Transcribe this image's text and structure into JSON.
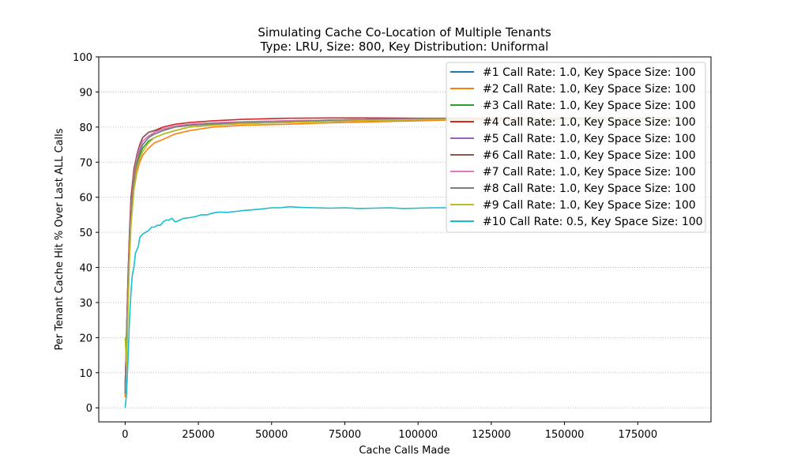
{
  "chart_data": {
    "type": "line",
    "title": "Simulating Cache Co-Location of Multiple Tenants",
    "subtitle": "Type: LRU, Size: 800, Key Distribution: Uniformal",
    "xlabel": "Cache Calls Made",
    "ylabel": "Per Tenant Cache Hit % Over Last ALL Calls",
    "xlim": [
      -9000,
      200000
    ],
    "ylim": [
      -4,
      100
    ],
    "xticks": [
      0,
      25000,
      50000,
      75000,
      100000,
      125000,
      150000,
      175000
    ],
    "yticks": [
      0,
      10,
      20,
      30,
      40,
      50,
      60,
      70,
      80,
      90,
      100
    ],
    "grid": "horizontal-dotted",
    "legend": "top-right",
    "series": [
      {
        "name": "#1 Call Rate: 1.0, Key Space Size: 100",
        "color": "#1f77b4",
        "x": [
          0,
          500,
          1000,
          1500,
          2000,
          3000,
          4000,
          5000,
          6000,
          8000,
          10000,
          13000,
          17000,
          22000,
          30000,
          40000,
          55000,
          70000,
          85000,
          100000,
          110000,
          190000
        ],
        "y": [
          5,
          20,
          35,
          47,
          57,
          65,
          70,
          73,
          75,
          77,
          78,
          79,
          80,
          80.5,
          81,
          81.3,
          81.6,
          82,
          82.2,
          82.3,
          82.4,
          82.6
        ]
      },
      {
        "name": "#2 Call Rate: 1.0, Key Space Size: 100",
        "color": "#ff7f0e",
        "x": [
          0,
          500,
          1000,
          1500,
          2000,
          3000,
          4000,
          5000,
          6000,
          8000,
          10000,
          13000,
          17000,
          22000,
          30000,
          40000,
          55000,
          70000,
          85000,
          100000,
          110000,
          190000
        ],
        "y": [
          3,
          15,
          30,
          43,
          52,
          62,
          67,
          70,
          72,
          74,
          75.5,
          76.5,
          78,
          79,
          80,
          80.5,
          80.8,
          81.2,
          81.5,
          81.8,
          82,
          82.4
        ]
      },
      {
        "name": "#3 Call Rate: 1.0, Key Space Size: 100",
        "color": "#2ca02c",
        "x": [
          0,
          500,
          1000,
          1500,
          2000,
          3000,
          4000,
          5000,
          6000,
          8000,
          10000,
          13000,
          17000,
          22000,
          30000,
          40000,
          55000,
          70000,
          85000,
          100000,
          110000,
          190000
        ],
        "y": [
          4,
          18,
          33,
          45,
          55,
          64,
          69,
          72,
          74,
          76,
          77,
          78,
          79,
          80,
          80.6,
          81,
          81.3,
          81.6,
          81.9,
          82.1,
          82.3,
          82.5
        ]
      },
      {
        "name": "#4 Call Rate: 1.0, Key Space Size: 100",
        "color": "#d62728",
        "x": [
          0,
          500,
          1000,
          1500,
          2000,
          3000,
          4000,
          5000,
          6000,
          8000,
          10000,
          13000,
          17000,
          22000,
          30000,
          40000,
          55000,
          70000,
          85000,
          100000,
          110000,
          190000
        ],
        "y": [
          6,
          22,
          38,
          50,
          60,
          68,
          72,
          75,
          77,
          78.5,
          79,
          80,
          80.8,
          81.3,
          81.8,
          82.2,
          82.5,
          82.6,
          82.6,
          82.5,
          82.5,
          82.6
        ]
      },
      {
        "name": "#5 Call Rate: 1.0, Key Space Size: 100",
        "color": "#9467bd",
        "x": [
          0,
          500,
          1000,
          1500,
          2000,
          3000,
          4000,
          5000,
          6000,
          8000,
          10000,
          13000,
          17000,
          22000,
          30000,
          40000,
          55000,
          70000,
          85000,
          100000,
          110000,
          190000
        ],
        "y": [
          5,
          19,
          34,
          46,
          56,
          65,
          70,
          73,
          75,
          77,
          78.5,
          79.5,
          80.2,
          80.8,
          81.2,
          81.5,
          81.8,
          82,
          82.2,
          82.3,
          82.4,
          82.6
        ]
      },
      {
        "name": "#6 Call Rate: 1.0, Key Space Size: 100",
        "color": "#8c564b",
        "x": [
          0,
          500,
          1000,
          1500,
          2000,
          3000,
          4000,
          5000,
          6000,
          8000,
          10000,
          13000,
          17000,
          22000,
          30000,
          40000,
          55000,
          70000,
          85000,
          100000,
          110000,
          190000
        ],
        "y": [
          6,
          21,
          37,
          49,
          59,
          67,
          72,
          75,
          77,
          78.5,
          79,
          79.5,
          80,
          80.5,
          81,
          81.4,
          81.7,
          82,
          82.2,
          82.3,
          82.4,
          82.6
        ]
      },
      {
        "name": "#7 Call Rate: 1.0, Key Space Size: 100",
        "color": "#e377c2",
        "x": [
          0,
          500,
          1000,
          1500,
          2000,
          3000,
          4000,
          5000,
          6000,
          8000,
          10000,
          13000,
          17000,
          22000,
          30000,
          40000,
          55000,
          70000,
          85000,
          100000,
          110000,
          190000
        ],
        "y": [
          5,
          20,
          35,
          47,
          57,
          66,
          71,
          74,
          76,
          77.5,
          78.5,
          79.5,
          80.3,
          80.8,
          81.2,
          81.5,
          81.8,
          82,
          82.2,
          82.3,
          82.4,
          82.6
        ]
      },
      {
        "name": "#8 Call Rate: 1.0, Key Space Size: 100",
        "color": "#7f7f7f",
        "x": [
          0,
          500,
          1000,
          1500,
          2000,
          3000,
          4000,
          5000,
          6000,
          8000,
          10000,
          13000,
          17000,
          22000,
          30000,
          40000,
          55000,
          70000,
          85000,
          100000,
          110000,
          190000
        ],
        "y": [
          4,
          19,
          34,
          46,
          56,
          65,
          70,
          73,
          75,
          77,
          78,
          79,
          80,
          80.6,
          81,
          81.3,
          81.6,
          81.9,
          82.1,
          82.2,
          82.3,
          82.5
        ]
      },
      {
        "name": "#9 Call Rate: 1.0, Key Space Size: 100",
        "color": "#bcbd22",
        "x": [
          0,
          500,
          1000,
          1500,
          2000,
          3000,
          4000,
          5000,
          6000,
          8000,
          10000,
          13000,
          17000,
          22000,
          30000,
          40000,
          55000,
          70000,
          85000,
          100000,
          110000,
          190000
        ],
        "y": [
          20,
          12,
          28,
          42,
          52,
          62,
          68,
          71,
          73,
          75.5,
          77,
          78,
          79,
          80,
          80.5,
          81,
          81.3,
          81.6,
          81.9,
          82.1,
          82.2,
          82.4
        ]
      },
      {
        "name": "#10 Call Rate: 0.5, Key Space Size: 100",
        "color": "#17becf",
        "x": [
          0,
          500,
          1000,
          1500,
          2000,
          2500,
          3000,
          3500,
          4000,
          4500,
          5000,
          6000,
          7000,
          8000,
          9000,
          10000,
          11000,
          12000,
          13000,
          14000,
          15000,
          16000,
          17000,
          18000,
          20000,
          22000,
          24000,
          26000,
          28000,
          30000,
          32000,
          35000,
          38000,
          40000,
          43000,
          46000,
          50000,
          53000,
          56000,
          60000,
          65000,
          70000,
          75000,
          80000,
          85000,
          90000,
          95000,
          100000,
          105000,
          110000
        ],
        "y": [
          0,
          4,
          14,
          25,
          33,
          38,
          40,
          44,
          45,
          46,
          48.5,
          49.5,
          50,
          50.5,
          51.5,
          51.5,
          52,
          52,
          53,
          53.5,
          53.5,
          54,
          53,
          53.2,
          54,
          54.2,
          54.5,
          55,
          55,
          55.5,
          55.8,
          55.7,
          56,
          56.2,
          56.4,
          56.6,
          57,
          57,
          57.3,
          57.1,
          57,
          56.9,
          57,
          56.8,
          56.9,
          57,
          56.8,
          56.9,
          57,
          57
        ]
      }
    ]
  }
}
